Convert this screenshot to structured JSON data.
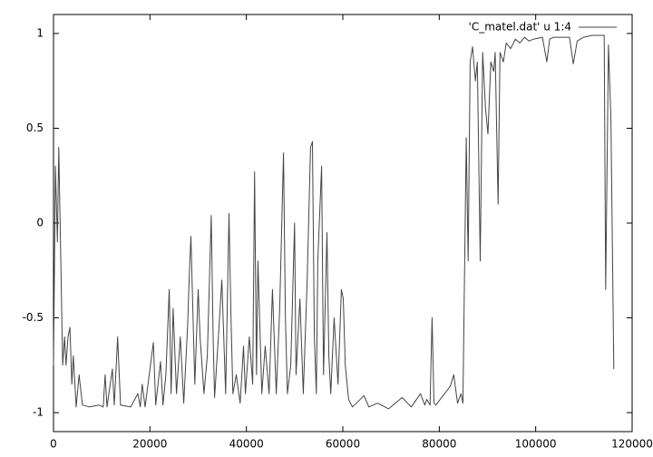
{
  "chart_data": {
    "type": "line",
    "x": [
      0,
      400,
      800,
      1100,
      1900,
      2300,
      2600,
      3000,
      3400,
      3800,
      4100,
      4700,
      5300,
      6000,
      7500,
      9400,
      10300,
      10700,
      11100,
      12200,
      12600,
      13300,
      13900,
      16000,
      17500,
      18000,
      18400,
      19000,
      20700,
      21200,
      22200,
      22700,
      23300,
      24000,
      24400,
      24800,
      25500,
      26300,
      27000,
      27800,
      28200,
      28500,
      29300,
      30000,
      30400,
      31200,
      31900,
      32700,
      33100,
      33400,
      34200,
      34900,
      35700,
      36400,
      36800,
      37200,
      37900,
      38700,
      39400,
      39800,
      40600,
      41300,
      41700,
      42100,
      42400,
      43200,
      43900,
      44700,
      45400,
      46200,
      46900,
      47700,
      48100,
      48500,
      49200,
      50000,
      50300,
      51100,
      51800,
      52600,
      53300,
      53700,
      54100,
      54500,
      54800,
      55600,
      56000,
      56700,
      57100,
      57500,
      58200,
      59000,
      59700,
      60100,
      60500,
      61200,
      62000,
      64400,
      65400,
      67200,
      69500,
      72300,
      74200,
      76100,
      77000,
      77400,
      78100,
      78500,
      78900,
      79300,
      81100,
      82300,
      83000,
      83800,
      84500,
      84900,
      85600,
      86000,
      86400,
      86900,
      87500,
      87900,
      88500,
      89000,
      89600,
      90100,
      90700,
      91300,
      91600,
      92200,
      92600,
      93300,
      93900,
      94800,
      95800,
      96700,
      97700,
      98600,
      99500,
      101400,
      102300,
      102900,
      103700,
      107000,
      107800,
      108600,
      109900,
      111700,
      114200,
      114500,
      115100,
      115600,
      116200
    ],
    "series": [
      {
        "name": "'C_matel.dat' u 1:4",
        "color": "#444444",
        "values": [
          -0.75,
          0.3,
          -0.1,
          0.4,
          -0.75,
          -0.6,
          -0.75,
          -0.6,
          -0.55,
          -0.85,
          -0.7,
          -0.97,
          -0.8,
          -0.96,
          -0.97,
          -0.96,
          -0.97,
          -0.8,
          -0.97,
          -0.77,
          -0.96,
          -0.6,
          -0.96,
          -0.97,
          -0.9,
          -0.97,
          -0.85,
          -0.97,
          -0.63,
          -0.96,
          -0.73,
          -0.96,
          -0.8,
          -0.35,
          -0.9,
          -0.45,
          -0.9,
          -0.6,
          -0.95,
          -0.55,
          -0.25,
          -0.07,
          -0.85,
          -0.35,
          -0.6,
          -0.9,
          -0.7,
          0.04,
          -0.6,
          -0.92,
          -0.6,
          -0.3,
          -0.9,
          0.05,
          -0.5,
          -0.9,
          -0.8,
          -0.95,
          -0.65,
          -0.9,
          -0.6,
          -0.85,
          0.27,
          -0.8,
          -0.2,
          -0.9,
          -0.65,
          -0.9,
          -0.35,
          -0.9,
          -0.45,
          0.37,
          -0.5,
          -0.9,
          -0.75,
          0.0,
          -0.8,
          -0.4,
          -0.9,
          -0.3,
          0.4,
          0.43,
          -0.6,
          -0.9,
          -0.2,
          0.3,
          -0.8,
          -0.05,
          -0.7,
          -0.9,
          -0.5,
          -0.85,
          -0.35,
          -0.4,
          -0.75,
          -0.93,
          -0.97,
          -0.91,
          -0.97,
          -0.95,
          -0.98,
          -0.92,
          -0.97,
          -0.9,
          -0.96,
          -0.93,
          -0.96,
          -0.5,
          -0.95,
          -0.96,
          -0.9,
          -0.86,
          -0.8,
          -0.95,
          -0.9,
          -0.95,
          0.45,
          -0.2,
          0.85,
          0.93,
          0.75,
          0.85,
          -0.2,
          0.9,
          0.6,
          0.47,
          0.85,
          0.8,
          0.9,
          0.1,
          0.9,
          0.85,
          0.95,
          0.92,
          0.97,
          0.95,
          0.98,
          0.96,
          0.97,
          0.98,
          0.85,
          0.97,
          0.98,
          0.98,
          0.84,
          0.96,
          0.98,
          0.99,
          0.99,
          -0.35,
          0.94,
          0.55,
          -0.77
        ]
      }
    ],
    "xlim": [
      0,
      120000
    ],
    "xticks": [
      0,
      20000,
      40000,
      60000,
      80000,
      100000,
      120000
    ],
    "ylim": [
      -1.1,
      1.1
    ],
    "yticks": [
      -1,
      -0.5,
      0,
      0.5,
      1
    ],
    "legend": "top right"
  }
}
